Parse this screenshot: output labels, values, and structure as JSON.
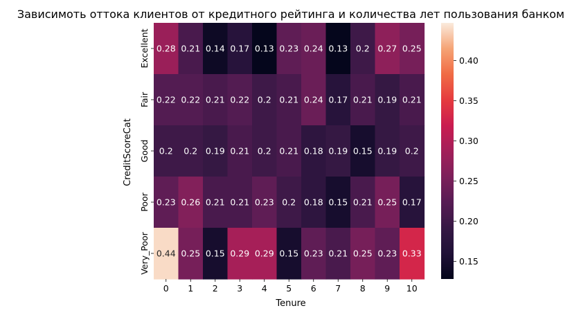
{
  "chart_data": {
    "type": "heatmap",
    "title": "Зависимоть оттока клиентов от кредитного рейтинга и количества лет пользования банком",
    "xlabel": "Tenure",
    "ylabel": "CreditScoreCat",
    "x_categories": [
      "0",
      "1",
      "2",
      "3",
      "4",
      "5",
      "6",
      "7",
      "8",
      "9",
      "10"
    ],
    "y_categories": [
      "Excellent",
      "Fair",
      "Good",
      "Poor",
      "Very_Poor"
    ],
    "values": [
      [
        0.28,
        0.21,
        0.14,
        0.17,
        0.13,
        0.23,
        0.24,
        0.13,
        0.2,
        0.27,
        0.25
      ],
      [
        0.22,
        0.22,
        0.21,
        0.22,
        0.2,
        0.21,
        0.24,
        0.17,
        0.21,
        0.19,
        0.21
      ],
      [
        0.2,
        0.2,
        0.19,
        0.21,
        0.2,
        0.21,
        0.18,
        0.19,
        0.15,
        0.19,
        0.2
      ],
      [
        0.23,
        0.26,
        0.21,
        0.21,
        0.23,
        0.2,
        0.18,
        0.15,
        0.21,
        0.25,
        0.17
      ],
      [
        0.44,
        0.25,
        0.15,
        0.29,
        0.29,
        0.15,
        0.23,
        0.21,
        0.25,
        0.23,
        0.33
      ]
    ],
    "annotations": [
      [
        "0.28",
        "0.21",
        "0.14",
        "0.17",
        "0.13",
        "0.23",
        "0.24",
        "0.13",
        "0.2",
        "0.27",
        "0.25"
      ],
      [
        "0.22",
        "0.22",
        "0.21",
        "0.22",
        "0.2",
        "0.21",
        "0.24",
        "0.17",
        "0.21",
        "0.19",
        "0.21"
      ],
      [
        "0.2",
        "0.2",
        "0.19",
        "0.21",
        "0.2",
        "0.21",
        "0.18",
        "0.19",
        "0.15",
        "0.19",
        "0.2"
      ],
      [
        "0.23",
        "0.26",
        "0.21",
        "0.21",
        "0.23",
        "0.2",
        "0.18",
        "0.15",
        "0.21",
        "0.25",
        "0.17"
      ],
      [
        "0.44",
        "0.25",
        "0.15",
        "0.29",
        "0.29",
        "0.15",
        "0.23",
        "0.21",
        "0.25",
        "0.23",
        "0.33"
      ]
    ],
    "colorbar": {
      "min": 0.128,
      "max": 0.447,
      "ticks": [
        0.15,
        0.2,
        0.25,
        0.3,
        0.35,
        0.4
      ],
      "tick_labels": [
        "0.15",
        "0.20",
        "0.25",
        "0.30",
        "0.35",
        "0.40"
      ],
      "colormap": "rocket"
    },
    "grid": false,
    "legend": "colorbar-right"
  }
}
